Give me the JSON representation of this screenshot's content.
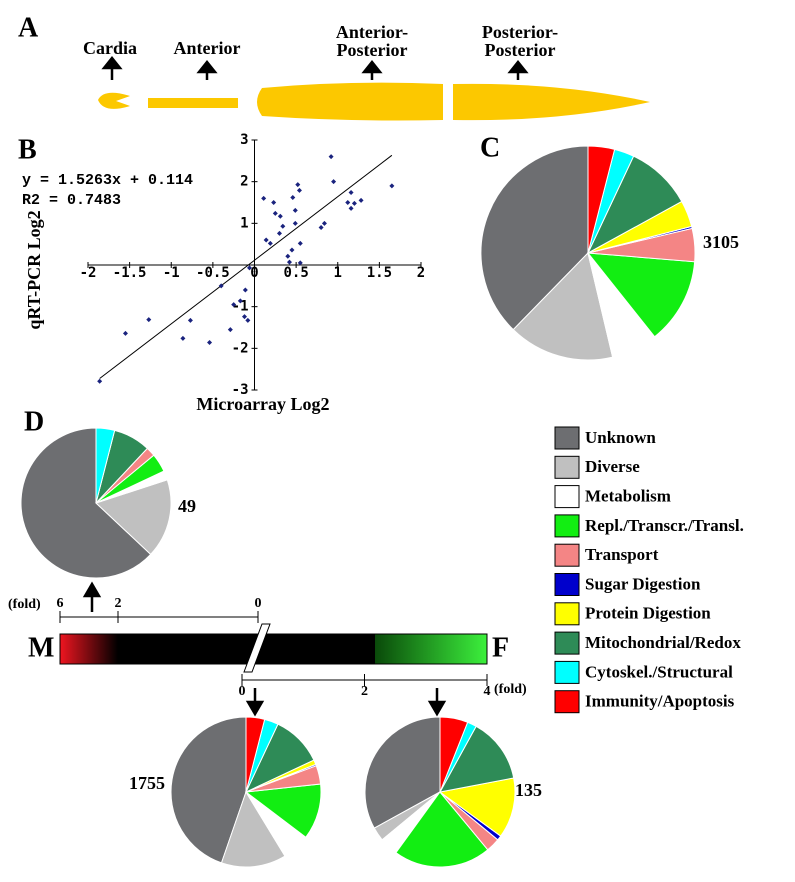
{
  "panel_labels": [
    "A",
    "B",
    "C",
    "D"
  ],
  "panel_a": {
    "labels": [
      "Cardia",
      "Anterior",
      [
        "Anterior-",
        "Posterior"
      ],
      [
        "Posterior-",
        "Posterior"
      ]
    ]
  },
  "legend": {
    "categories": [
      "Unknown",
      "Diverse",
      "Metabolism",
      "Repl./Transcr./Transl.",
      "Transport",
      "Sugar Digestion",
      "Protein Digestion",
      "Mitochondrial/Redox",
      "Cytoskel./Structural",
      "Immunity/Apoptosis"
    ],
    "colors": [
      "#6d6e71",
      "#c0c0c0",
      "#ffffff",
      "#12ee12",
      "#f48585",
      "#0000cc",
      "#ffff00",
      "#2e8b57",
      "#00ffff",
      "#ff0000"
    ]
  },
  "fold_bar": {
    "left": "M",
    "right": "F",
    "unit": "(fold)",
    "top_ticks": [
      6,
      2,
      0
    ],
    "bottom_ticks": [
      0,
      2,
      4
    ]
  },
  "chart_data": [
    {
      "type": "scatter",
      "equation": "y = 1.5263x + 0.114",
      "r2": "R2 = 0.7483",
      "trendline": {
        "slope": 1.5263,
        "intercept": 0.114
      },
      "xlabel": "Microarray Log2",
      "ylabel": "qRT-PCR Log2",
      "color": "#1a237e",
      "x": [
        -1.86,
        -1.55,
        -1.27,
        -0.77,
        -0.86,
        -0.54,
        -0.4,
        -0.29,
        -0.25,
        -0.17,
        -0.12,
        -0.11,
        -0.08,
        -0.06,
        0.11,
        0.14,
        0.19,
        0.23,
        0.25,
        0.3,
        0.34,
        0.4,
        0.42,
        0.45,
        0.46,
        0.49,
        0.49,
        0.52,
        0.54,
        0.55,
        0.55,
        0.8,
        0.84,
        0.92,
        0.95,
        1.12,
        1.16,
        1.16,
        1.2,
        1.28,
        1.65,
        0.31
      ],
      "y": [
        -2.79,
        -1.64,
        -1.31,
        -1.33,
        -1.76,
        -1.86,
        -0.5,
        -1.55,
        -0.95,
        -0.86,
        -1.24,
        -0.6,
        -1.33,
        -0.07,
        1.6,
        0.6,
        0.52,
        1.5,
        1.24,
        0.76,
        0.93,
        0.21,
        0.07,
        0.36,
        1.62,
        1.31,
        1.0,
        1.93,
        1.79,
        0.52,
        0.05,
        0.9,
        1.0,
        2.6,
        2.0,
        1.5,
        1.74,
        1.36,
        1.48,
        1.55,
        1.9,
        1.17
      ],
      "xlim": [
        -2,
        2
      ],
      "ylim": [
        -3,
        3
      ],
      "xticks": [
        -2,
        -1.5,
        -1,
        -0.5,
        0,
        0.5,
        1,
        1.5,
        2
      ],
      "yticks": [
        -3,
        -2,
        -1,
        1,
        2,
        3
      ]
    },
    {
      "type": "pie",
      "label": "3105",
      "values": [
        37.7,
        16,
        7,
        13,
        5,
        0.3,
        4,
        10,
        3,
        4
      ]
    },
    {
      "type": "pie",
      "label": "49",
      "values": [
        63,
        17,
        2,
        4,
        2,
        0,
        0,
        8,
        4,
        0
      ]
    },
    {
      "type": "pie",
      "label": "1755",
      "values": [
        44.7,
        14,
        6,
        12,
        4,
        0.3,
        1,
        11,
        3,
        4
      ]
    },
    {
      "type": "pie",
      "label": "135",
      "values": [
        33,
        3,
        4,
        21,
        3,
        1,
        13,
        14,
        2,
        6
      ]
    }
  ]
}
